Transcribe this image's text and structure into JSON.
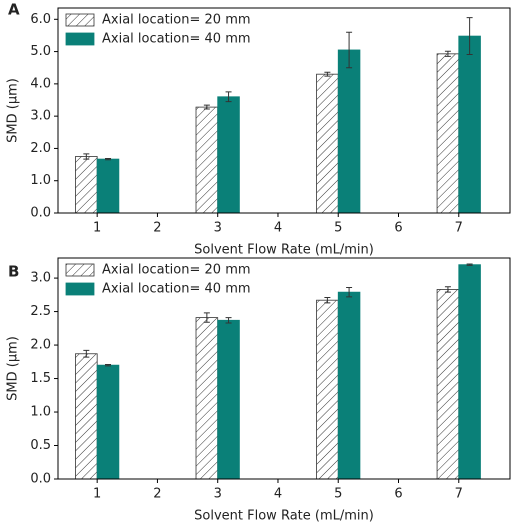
{
  "chart_data": [
    {
      "type": "bar",
      "label": "A",
      "xlabel": "Solvent Flow Rate (mL/min)",
      "ylabel": "SMD (μm)",
      "x": [
        1,
        3,
        5,
        7
      ],
      "xlim": [
        0.35,
        7.85
      ],
      "xticks": [
        1,
        2,
        3,
        4,
        5,
        6,
        7
      ],
      "ylim": [
        0,
        6.35
      ],
      "yticks": [
        {
          "value": 0,
          "label": "0.0"
        },
        {
          "value": 1,
          "label": "1.0"
        },
        {
          "value": 2,
          "label": "2.0"
        },
        {
          "value": 3,
          "label": "3.0"
        },
        {
          "value": 4,
          "label": "4.0"
        },
        {
          "value": 5,
          "label": "5.0"
        },
        {
          "value": 6,
          "label": "6.0"
        }
      ],
      "legend": "upper left",
      "series": [
        {
          "name": "Axial location= 20 mm",
          "color": "#ffffff",
          "hatch": true,
          "values": [
            1.75,
            3.28,
            4.3,
            4.93
          ],
          "errors": [
            0.08,
            0.06,
            0.06,
            0.08
          ]
        },
        {
          "name": "Axial location= 40 mm",
          "color": "#0a8078",
          "hatch": false,
          "values": [
            1.67,
            3.6,
            5.05,
            5.48
          ],
          "errors": [
            0.02,
            0.15,
            0.55,
            0.57
          ]
        }
      ]
    },
    {
      "type": "bar",
      "label": "B",
      "xlabel": "Solvent Flow Rate (mL/min)",
      "ylabel": "SMD (μm)",
      "x": [
        1,
        3,
        5,
        7
      ],
      "xlim": [
        0.35,
        7.85
      ],
      "xticks": [
        1,
        2,
        3,
        4,
        5,
        6,
        7
      ],
      "ylim": [
        0,
        3.3
      ],
      "yticks": [
        {
          "value": 0,
          "label": "0.0"
        },
        {
          "value": 0.5,
          "label": "0.5"
        },
        {
          "value": 1,
          "label": "1.0"
        },
        {
          "value": 1.5,
          "label": "1.5"
        },
        {
          "value": 2,
          "label": "2.0"
        },
        {
          "value": 2.5,
          "label": "2.5"
        },
        {
          "value": 3,
          "label": "3.0"
        }
      ],
      "legend": "upper left",
      "series": [
        {
          "name": "Axial location= 20 mm",
          "color": "#ffffff",
          "hatch": true,
          "values": [
            1.87,
            2.41,
            2.67,
            2.83
          ],
          "errors": [
            0.05,
            0.07,
            0.04,
            0.04
          ]
        },
        {
          "name": "Axial location= 40 mm",
          "color": "#0a8078",
          "hatch": false,
          "values": [
            1.7,
            2.37,
            2.79,
            3.2
          ],
          "errors": [
            0.01,
            0.04,
            0.07,
            0.01
          ]
        }
      ]
    }
  ]
}
